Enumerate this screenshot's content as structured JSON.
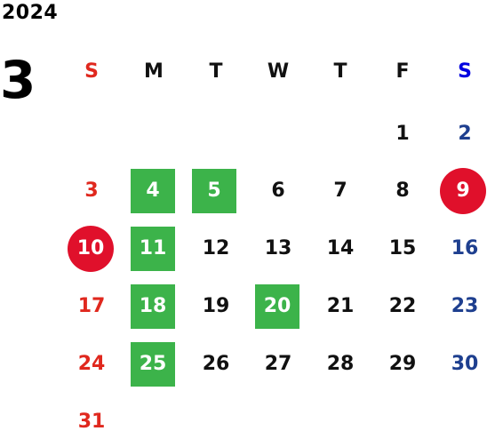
{
  "year": "2024",
  "month": "3",
  "weekday_headers": [
    "S",
    "M",
    "T",
    "W",
    "T",
    "F",
    "S"
  ],
  "colors": {
    "sunday": "#e0281e",
    "saturday_header": "#0000e0",
    "saturday": "#1e3f8f",
    "weekday": "#111111",
    "green_highlight": "#3cb34a",
    "red_circle": "#e0102b"
  },
  "days": [
    {
      "label": "1"
    },
    {
      "label": "2"
    },
    {
      "label": "3"
    },
    {
      "label": "4"
    },
    {
      "label": "5"
    },
    {
      "label": "6"
    },
    {
      "label": "7"
    },
    {
      "label": "8"
    },
    {
      "label": "9"
    },
    {
      "label": "10"
    },
    {
      "label": "11"
    },
    {
      "label": "12"
    },
    {
      "label": "13"
    },
    {
      "label": "14"
    },
    {
      "label": "15"
    },
    {
      "label": "16"
    },
    {
      "label": "17"
    },
    {
      "label": "18"
    },
    {
      "label": "19"
    },
    {
      "label": "20"
    },
    {
      "label": "21"
    },
    {
      "label": "22"
    },
    {
      "label": "23"
    },
    {
      "label": "24"
    },
    {
      "label": "25"
    },
    {
      "label": "26"
    },
    {
      "label": "27"
    },
    {
      "label": "28"
    },
    {
      "label": "29"
    },
    {
      "label": "30"
    },
    {
      "label": "31"
    }
  ]
}
